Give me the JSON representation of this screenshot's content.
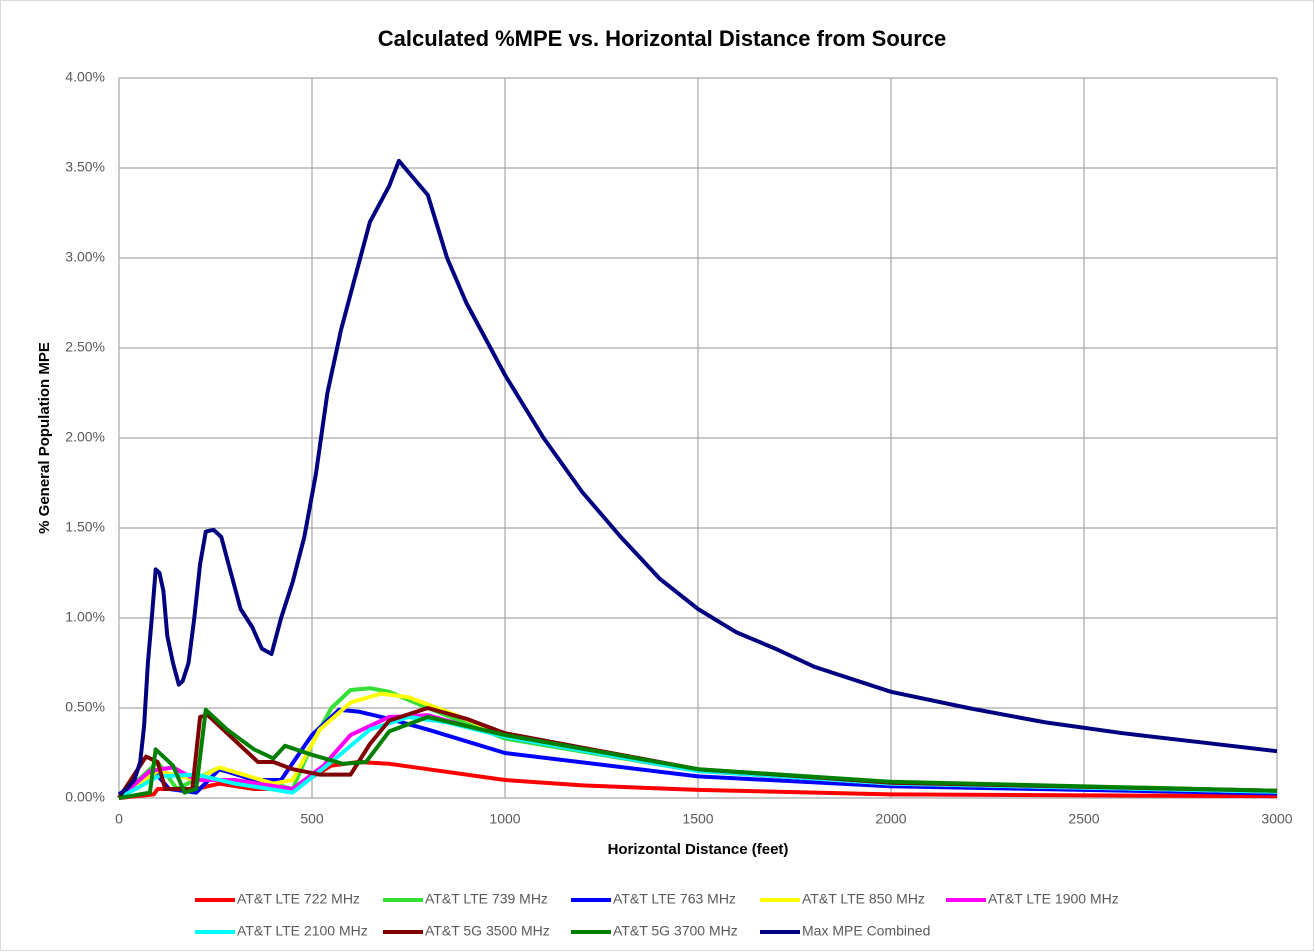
{
  "chart_data": {
    "type": "line",
    "title": "Calculated %MPE vs. Horizontal Distance from Source",
    "x_label": "Horizontal Distance (feet)",
    "y_label": "% General Population MPE",
    "xlim": [
      0,
      3000
    ],
    "xticks": [
      0,
      500,
      1000,
      1500,
      2000,
      2500,
      3000
    ],
    "ylim": [
      0,
      4
    ],
    "yticks": [
      {
        "value": 0,
        "label": "0.00%"
      },
      {
        "value": 0.5,
        "label": "0.50%"
      },
      {
        "value": 1,
        "label": "1.00%"
      },
      {
        "value": 1.5,
        "label": "1.50%"
      },
      {
        "value": 2,
        "label": "2.00%"
      },
      {
        "value": 2.5,
        "label": "2.50%"
      },
      {
        "value": 3,
        "label": "3.00%"
      },
      {
        "value": 3.5,
        "label": "3.50%"
      },
      {
        "value": 4,
        "label": "4.00%"
      }
    ],
    "grid": true,
    "legend": "bottom",
    "series": [
      {
        "name": "AT&T LTE 722 MHz",
        "color": "#ff0000",
        "x": [
          0,
          90,
          100,
          130,
          200,
          260,
          350,
          450,
          550,
          620,
          700,
          800,
          1000,
          1200,
          1500,
          2000,
          3000
        ],
        "values": [
          0,
          0.02,
          0.05,
          0.05,
          0.05,
          0.08,
          0.05,
          0.05,
          0.18,
          0.2,
          0.19,
          0.16,
          0.1,
          0.07,
          0.045,
          0.02,
          0.01
        ]
      },
      {
        "name": "AT&T LTE 739 MHz",
        "color": "#33e033",
        "x": [
          0,
          100,
          150,
          250,
          300,
          450,
          500,
          550,
          600,
          650,
          700,
          800,
          1000,
          1500,
          2000,
          2500,
          3000
        ],
        "values": [
          0,
          0.2,
          0.05,
          0.16,
          0.14,
          0.05,
          0.3,
          0.5,
          0.6,
          0.61,
          0.59,
          0.5,
          0.33,
          0.15,
          0.08,
          0.05,
          0.035
        ]
      },
      {
        "name": "AT&T LTE 763 MHz",
        "color": "#0000ff",
        "x": [
          0,
          90,
          130,
          200,
          260,
          350,
          420,
          500,
          570,
          620,
          700,
          800,
          1000,
          1500,
          2000,
          3000
        ],
        "values": [
          0,
          0.15,
          0.05,
          0.03,
          0.16,
          0.1,
          0.1,
          0.35,
          0.49,
          0.48,
          0.44,
          0.38,
          0.25,
          0.12,
          0.065,
          0.025
        ]
      },
      {
        "name": "AT&T LTE 850 MHz",
        "color": "#ffff00",
        "x": [
          0,
          100,
          200,
          260,
          400,
          450,
          520,
          600,
          680,
          750,
          850,
          1000,
          1500,
          2000,
          3000
        ],
        "values": [
          0,
          0.15,
          0.1,
          0.17,
          0.08,
          0.1,
          0.38,
          0.53,
          0.58,
          0.56,
          0.48,
          0.35,
          0.15,
          0.08,
          0.035
        ]
      },
      {
        "name": "AT&T LTE 1900 MHz",
        "color": "#ff00ff",
        "x": [
          0,
          80,
          140,
          200,
          300,
          450,
          530,
          600,
          700,
          800,
          1000,
          1500,
          2000,
          3000
        ],
        "values": [
          0,
          0.15,
          0.17,
          0.1,
          0.1,
          0.05,
          0.18,
          0.35,
          0.45,
          0.46,
          0.34,
          0.15,
          0.08,
          0.035
        ]
      },
      {
        "name": "AT&T LTE 2100 MHz",
        "color": "#00ffff",
        "x": [
          0,
          60,
          100,
          200,
          300,
          450,
          550,
          650,
          750,
          850,
          1000,
          1500,
          2000,
          3000
        ],
        "values": [
          0,
          0.07,
          0.12,
          0.13,
          0.08,
          0.03,
          0.2,
          0.38,
          0.45,
          0.42,
          0.34,
          0.15,
          0.08,
          0.035
        ]
      },
      {
        "name": "AT&T 5G 3500 MHz",
        "color": "#800000",
        "x": [
          0,
          70,
          100,
          120,
          190,
          210,
          230,
          300,
          360,
          400,
          450,
          520,
          600,
          650,
          700,
          800,
          900,
          1000,
          1500,
          2000,
          3000
        ],
        "values": [
          0,
          0.23,
          0.2,
          0.05,
          0.05,
          0.45,
          0.46,
          0.32,
          0.2,
          0.2,
          0.16,
          0.13,
          0.13,
          0.3,
          0.43,
          0.5,
          0.44,
          0.36,
          0.16,
          0.085,
          0.04
        ]
      },
      {
        "name": "AT&T 5G 3700 MHz",
        "color": "#008000",
        "x": [
          0,
          80,
          95,
          140,
          170,
          200,
          225,
          280,
          350,
          400,
          430,
          500,
          580,
          640,
          700,
          800,
          1000,
          1500,
          2000,
          3000
        ],
        "values": [
          0,
          0.03,
          0.27,
          0.18,
          0.03,
          0.05,
          0.49,
          0.38,
          0.27,
          0.22,
          0.29,
          0.24,
          0.19,
          0.2,
          0.37,
          0.45,
          0.35,
          0.16,
          0.09,
          0.04
        ]
      },
      {
        "name": "Max MPE Combined",
        "color": "#000080",
        "x": [
          0,
          20,
          40,
          55,
          65,
          75,
          85,
          95,
          105,
          115,
          125,
          140,
          155,
          165,
          180,
          195,
          210,
          225,
          245,
          265,
          290,
          315,
          345,
          370,
          395,
          420,
          450,
          480,
          510,
          540,
          575,
          600,
          650,
          700,
          725,
          800,
          850,
          900,
          1000,
          1100,
          1200,
          1300,
          1400,
          1500,
          1600,
          1700,
          1800,
          2000,
          2200,
          2400,
          2600,
          2800,
          3000
        ],
        "values": [
          0.02,
          0.05,
          0.1,
          0.2,
          0.4,
          0.75,
          1.0,
          1.27,
          1.25,
          1.15,
          0.9,
          0.75,
          0.63,
          0.65,
          0.75,
          1.0,
          1.3,
          1.48,
          1.49,
          1.45,
          1.25,
          1.05,
          0.95,
          0.83,
          0.8,
          1.0,
          1.2,
          1.45,
          1.8,
          2.25,
          2.6,
          2.8,
          3.2,
          3.4,
          3.54,
          3.35,
          3.0,
          2.75,
          2.35,
          2.0,
          1.7,
          1.45,
          1.22,
          1.05,
          0.92,
          0.83,
          0.73,
          0.59,
          0.5,
          0.42,
          0.36,
          0.31,
          0.26
        ]
      }
    ]
  }
}
